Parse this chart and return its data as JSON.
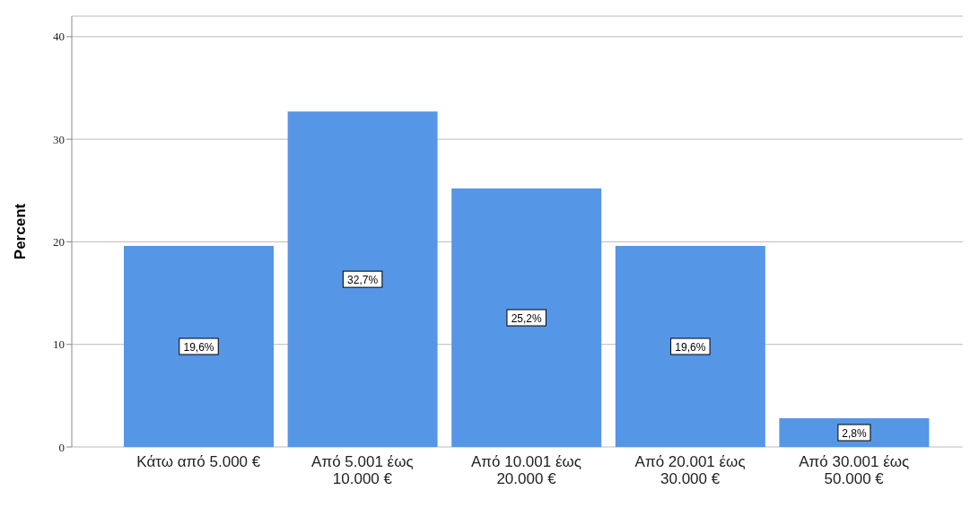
{
  "chart_data": {
    "type": "bar",
    "ylabel": "Percent",
    "categories": [
      "Κάτω από 5.000 €",
      "Από 5.001 έως 10.000 €",
      "Από 10.001 έως 20.000 €",
      "Από 20.001 έως 30.000 €",
      "Από 30.001 έως 50.000 €"
    ],
    "values": [
      19.6,
      32.7,
      25.2,
      19.6,
      2.8
    ],
    "value_labels": [
      "19,6%",
      "32,7%",
      "25,2%",
      "19,6%",
      "2,8%"
    ],
    "color": "#5596e6",
    "ylim": [
      0,
      42
    ],
    "yticks": [
      0,
      10,
      20,
      30,
      40
    ],
    "grid": "y",
    "legend": false
  }
}
